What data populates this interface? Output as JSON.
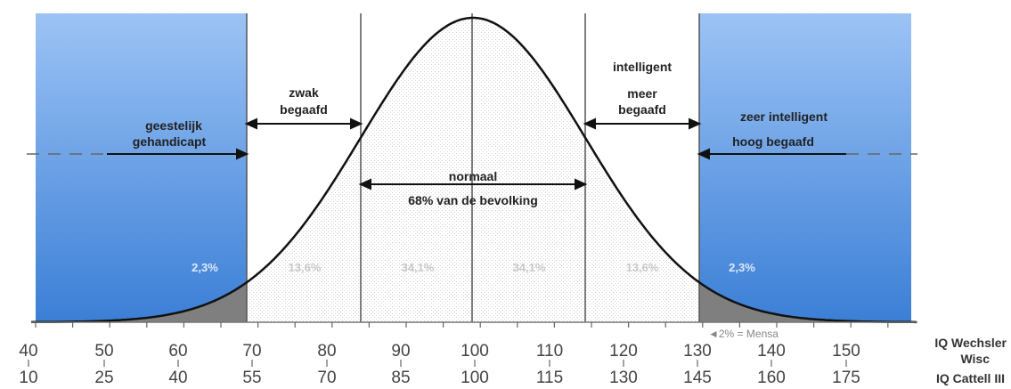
{
  "zones": {
    "left_outer": {
      "line1": "geestelijk",
      "line2": "gehandicapt",
      "percent": "2,3%"
    },
    "left_inner": {
      "line1": "zwak",
      "line2": "begaafd",
      "percent": "13,6%"
    },
    "center": {
      "line1": "normaal",
      "line2": "68% van de bevolking",
      "percent_left": "34,1%",
      "percent_right": "34,1%"
    },
    "right_inner": {
      "line1": "intelligent",
      "line2": "meer",
      "line3": "begaafd",
      "percent": "13,6%"
    },
    "right_outer": {
      "line1": "zeer intelligent",
      "line2": "hoog begaafd",
      "percent": "2,3%"
    }
  },
  "mensa_note": "◄2% = Mensa",
  "scales": {
    "wechsler": {
      "name_line1": "IQ Wechsler",
      "name_line2": "Wisc",
      "ticks": [
        "40",
        "50",
        "60",
        "70",
        "80",
        "90",
        "100",
        "110",
        "120",
        "130",
        "140",
        "150"
      ]
    },
    "cattell": {
      "name": "IQ Cattell III",
      "ticks": [
        "10",
        "25",
        "40",
        "55",
        "70",
        "85",
        "100",
        "115",
        "130",
        "145",
        "160",
        "175"
      ]
    }
  },
  "colors": {
    "blue_dark": "#3b7fd6",
    "blue_light": "#9cc3f5",
    "curve": "#111111",
    "tail_fill": "#888888",
    "stipple": "#e4e4e4"
  }
}
